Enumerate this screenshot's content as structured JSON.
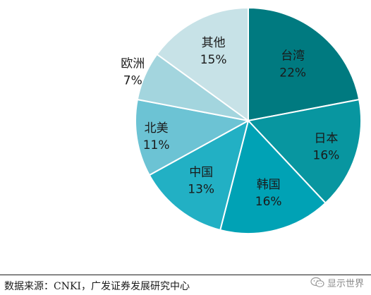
{
  "chart_data": {
    "type": "pie",
    "slices": [
      {
        "label": "台湾",
        "value": 22,
        "value_label": "22%",
        "color": "#007a80"
      },
      {
        "label": "日本",
        "value": 16,
        "value_label": "16%",
        "color": "#0896a0"
      },
      {
        "label": "韩国",
        "value": 16,
        "value_label": "16%",
        "color": "#00a2b5"
      },
      {
        "label": "中国",
        "value": 13,
        "value_label": "13%",
        "color": "#22b0c4"
      },
      {
        "label": "北美",
        "value": 11,
        "value_label": "11%",
        "color": "#6cc3d4"
      },
      {
        "label": "欧洲",
        "value": 7,
        "value_label": "7%",
        "color": "#a3d5de"
      },
      {
        "label": "其他",
        "value": 15,
        "value_label": "15%",
        "color": "#c7e2e7"
      }
    ],
    "start_angle_deg": 0,
    "direction": "clockwise",
    "label_color_dark": "#ffffff",
    "label_color_light": "#1a1a1a"
  },
  "footer": {
    "source_text": "数据来源：CNKI，广发证券发展研究中心",
    "watermark_text": "显示世界",
    "watermark_icon": "wechat-icon"
  }
}
